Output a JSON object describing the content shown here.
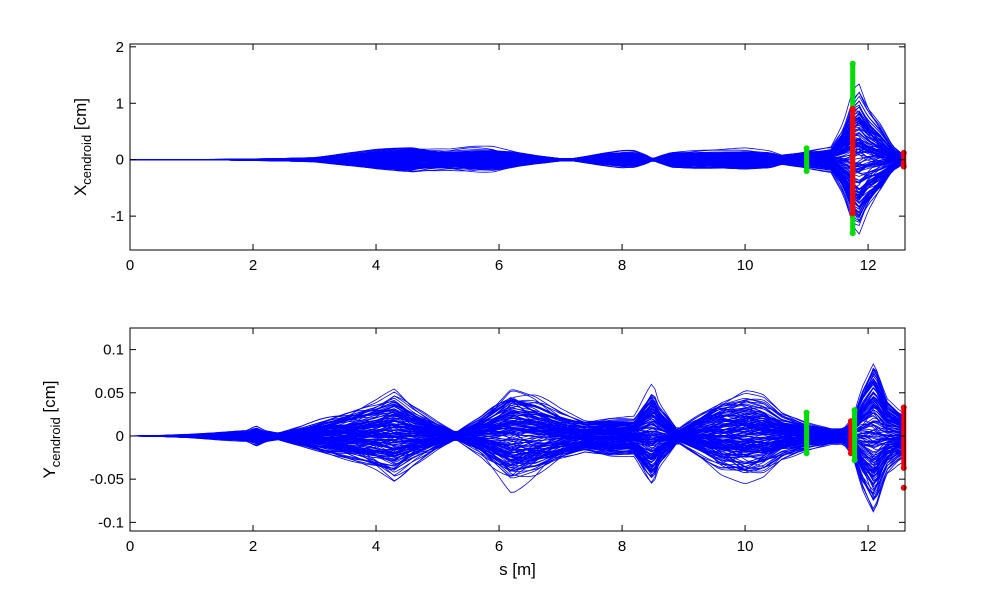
{
  "chart_data": [
    {
      "type": "line",
      "xlim": [
        0,
        12.6
      ],
      "ylim": [
        -1.6,
        2.05
      ],
      "xticks": [
        0,
        2,
        4,
        6,
        8,
        10,
        12
      ],
      "yticks": [
        -1,
        0,
        1,
        2
      ],
      "xtick_labels": [
        "0",
        "2",
        "4",
        "6",
        "8",
        "10",
        "12"
      ],
      "ytick_labels": [
        "-1",
        "0",
        "1",
        "2"
      ],
      "ylabel_main": "X",
      "ylabel_sub": "cendroid",
      "ylabel_unit": " [cm]",
      "xlabel": "",
      "grid": false,
      "series_color": "#0000ff",
      "series_count": 150,
      "envelope": {
        "s": [
          0,
          0.5,
          1.0,
          1.5,
          2.0,
          2.5,
          3.0,
          3.5,
          4.0,
          4.4,
          4.6,
          4.8,
          5.2,
          5.6,
          5.9,
          6.2,
          6.6,
          7.0,
          7.2,
          7.6,
          8.0,
          8.2,
          8.4,
          8.5,
          8.6,
          8.8,
          9.2,
          9.6,
          10.0,
          10.4,
          10.6,
          11.0,
          11.4,
          11.6,
          11.75,
          11.85,
          12.0,
          12.2,
          12.4,
          12.6
        ],
        "a": [
          0,
          0.002,
          0.005,
          0.01,
          0.02,
          0.03,
          0.05,
          0.14,
          0.22,
          0.28,
          0.3,
          0.26,
          0.22,
          0.26,
          0.27,
          0.2,
          0.1,
          0.03,
          0.03,
          0.12,
          0.2,
          0.2,
          0.1,
          0.02,
          0.08,
          0.18,
          0.2,
          0.2,
          0.22,
          0.18,
          0.1,
          0.2,
          0.28,
          0.8,
          1.5,
          1.7,
          1.2,
          0.8,
          0.3,
          0.08
        ]
      },
      "markers": [
        {
          "s": 11.0,
          "from": -0.2,
          "to": 0.2,
          "color": "#00dd00"
        },
        {
          "s": 11.75,
          "from": -1.3,
          "to": 1.7,
          "color": "#00dd00"
        },
        {
          "s": 11.75,
          "from": -0.95,
          "to": 0.9,
          "color": "#ff0000"
        },
        {
          "s": 12.58,
          "from": -0.12,
          "to": 0.12,
          "color": "#ff0000"
        }
      ]
    },
    {
      "type": "line",
      "xlim": [
        0,
        12.6
      ],
      "ylim": [
        -0.11,
        0.125
      ],
      "xticks": [
        0,
        2,
        4,
        6,
        8,
        10,
        12
      ],
      "yticks": [
        -0.1,
        -0.05,
        0,
        0.05,
        0.1
      ],
      "xtick_labels": [
        "0",
        "2",
        "4",
        "6",
        "8",
        "10",
        "12"
      ],
      "ytick_labels": [
        "-0.1",
        "-0.05",
        "0",
        "0.05",
        "0.1"
      ],
      "ylabel_main": "Y",
      "ylabel_sub": "cendroid",
      "ylabel_unit": " [cm]",
      "xlabel": "s [m]",
      "grid": false,
      "series_color": "#0000ff",
      "series_count": 150,
      "envelope": {
        "s": [
          0,
          0.5,
          1.0,
          1.5,
          1.9,
          2.05,
          2.2,
          2.4,
          2.8,
          3.4,
          4.0,
          4.3,
          4.6,
          5.0,
          5.3,
          5.7,
          6.0,
          6.2,
          6.6,
          7.0,
          7.4,
          7.8,
          8.2,
          8.4,
          8.5,
          8.6,
          8.9,
          9.2,
          9.6,
          10.0,
          10.3,
          10.6,
          11.0,
          11.4,
          11.6,
          11.75,
          11.9,
          12.1,
          12.3,
          12.5,
          12.6
        ],
        "a": [
          0,
          0.001,
          0.003,
          0.006,
          0.008,
          0.015,
          0.008,
          0.005,
          0.015,
          0.035,
          0.055,
          0.07,
          0.045,
          0.02,
          0.005,
          0.03,
          0.06,
          0.08,
          0.065,
          0.04,
          0.025,
          0.03,
          0.03,
          0.065,
          0.08,
          0.05,
          0.01,
          0.03,
          0.06,
          0.07,
          0.06,
          0.035,
          0.02,
          0.012,
          0.012,
          0.03,
          0.08,
          0.125,
          0.06,
          0.04,
          0.035
        ]
      },
      "markers": [
        {
          "s": 11.0,
          "from": -0.02,
          "to": 0.027,
          "color": "#00dd00"
        },
        {
          "s": 11.72,
          "from": -0.02,
          "to": 0.017,
          "color": "#ff0000"
        },
        {
          "s": 11.78,
          "from": -0.028,
          "to": 0.03,
          "color": "#00dd00"
        },
        {
          "s": 12.58,
          "from": -0.037,
          "to": 0.033,
          "color": "#ff0000"
        },
        {
          "s": 12.58,
          "from": -0.06,
          "to": -0.06,
          "color": "#ff0000"
        }
      ]
    }
  ]
}
